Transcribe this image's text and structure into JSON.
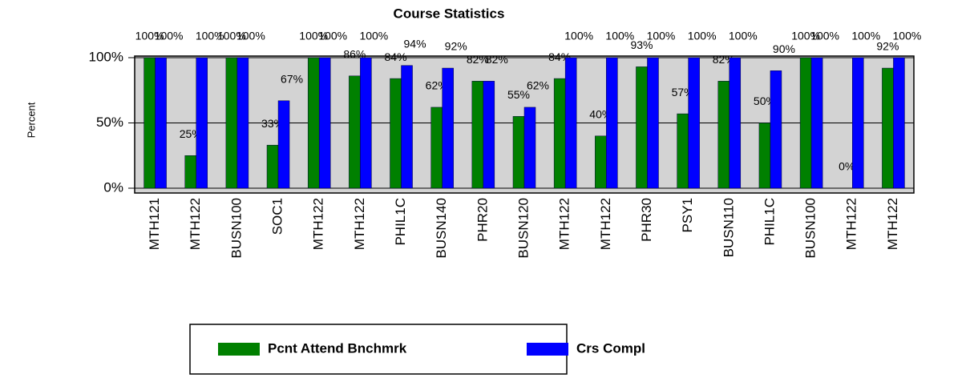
{
  "chart_data": {
    "type": "bar",
    "title": "Course Statistics",
    "y_label": "Percent",
    "categories": [
      "MTH121",
      "MTH122",
      "BUSN100",
      "SOC1",
      "MTH122",
      "MTH122",
      "PHIL1C",
      "BUSN140",
      "PHR20",
      "BUSN120",
      "MTH122",
      "MTH122",
      "PHR30",
      "PSY1",
      "BUSN110",
      "PHIL1C",
      "BUSN100",
      "MTH122",
      "MTH122"
    ],
    "series": [
      {
        "name": "Pcnt Attend Bnchmrk",
        "color": "#008000",
        "values": [
          100,
          25,
          100,
          33,
          100,
          86,
          84,
          62,
          82,
          55,
          84,
          40,
          93,
          57,
          82,
          50,
          100,
          0,
          92
        ],
        "value_labels": [
          "100%",
          "25%",
          "100%",
          "33%",
          "100%",
          "86%",
          "84%",
          "62%",
          "82%",
          "55%",
          "84%",
          "40%",
          "93%",
          "57%",
          "82%",
          "50%",
          "100%",
          "0%",
          "92%"
        ]
      },
      {
        "name": "Crs Compl",
        "color": "#0000ff",
        "values": [
          100,
          100,
          100,
          67,
          100,
          100,
          94,
          92,
          82,
          62,
          100,
          100,
          100,
          100,
          100,
          90,
          100,
          100,
          100
        ],
        "value_labels": [
          "100%",
          "100%",
          "100%",
          "67%",
          "100%",
          "100%",
          "94%",
          "92%",
          "82%",
          "62%",
          "100%",
          "100%",
          "100%",
          "100%",
          "100%",
          "90%",
          "100%",
          "100%",
          "100%"
        ]
      }
    ],
    "ylim": [
      0,
      100
    ],
    "yticks": [
      {
        "value": 0,
        "label": "0%"
      },
      {
        "value": 50,
        "label": "50%"
      },
      {
        "value": 100,
        "label": "100%"
      }
    ],
    "grid": true,
    "legend": "bottom"
  }
}
